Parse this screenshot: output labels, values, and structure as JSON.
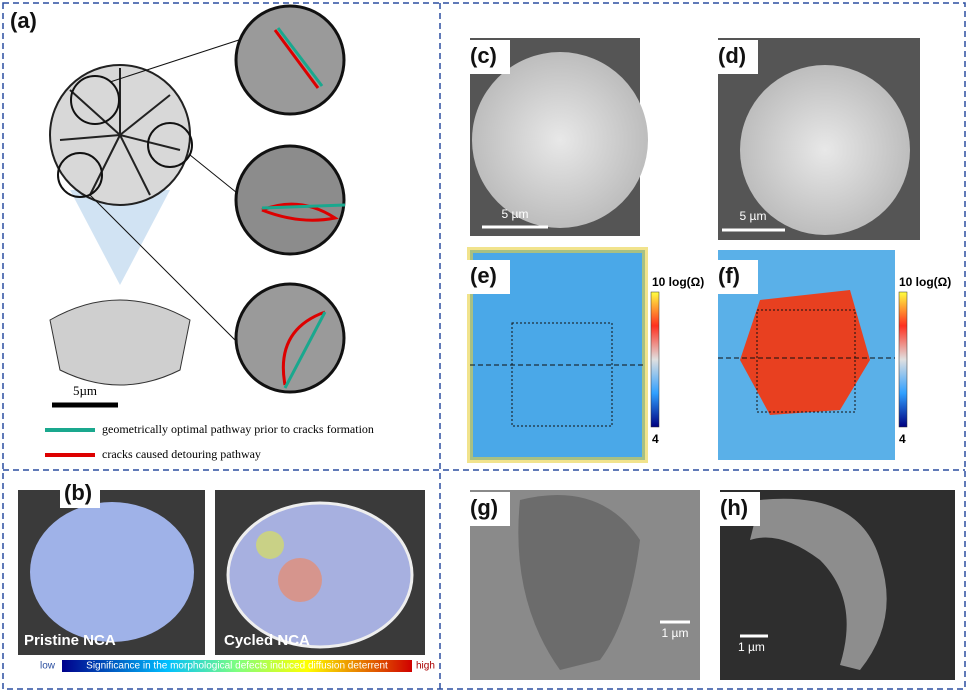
{
  "panel_a": {
    "label": "(a)",
    "scale": "5µm",
    "legend": [
      "geometrically optimal pathway prior to cracks formation",
      "cracks caused detouring pathway"
    ]
  },
  "panel_b": {
    "label": "(b)",
    "left": "Pristine NCA",
    "right": "Cycled NCA",
    "bar_low": "low",
    "bar_text": "Significance in the morphological defects induced diffusion deterrent",
    "bar_high": "high"
  },
  "panel_c": {
    "label": "(c)",
    "scale": "5 µm"
  },
  "panel_d": {
    "label": "(d)",
    "scale": "5 µm"
  },
  "panel_e": {
    "label": "(e)",
    "bar_top": "10 log(Ω)",
    "bar_bottom": "4"
  },
  "panel_f": {
    "label": "(f)",
    "bar_top": "10 log(Ω)",
    "bar_bottom": "4"
  },
  "panel_g": {
    "label": "(g)",
    "scale": "1 µm"
  },
  "panel_h": {
    "label": "(h)",
    "scale": "1 µm"
  }
}
